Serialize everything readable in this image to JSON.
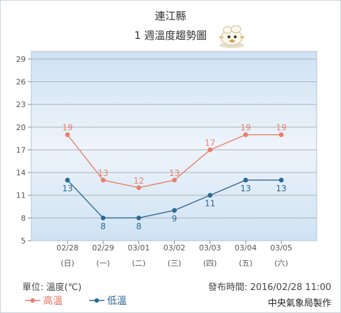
{
  "header": {
    "location": "連江縣",
    "subtitle": "1 週溫度趨勢圖"
  },
  "footer": {
    "unit": "單位: 溫度(℃)",
    "issued": "發布時間: 2016/02/28 11:00",
    "agency": "中央氣象局製作"
  },
  "legend": {
    "high": "高溫",
    "low": "低溫"
  },
  "colors": {
    "high": "#e87f6b",
    "low": "#2b6a94"
  },
  "chart_data": {
    "type": "line",
    "categories": [
      "02/28",
      "02/29",
      "03/01",
      "03/02",
      "03/03",
      "03/04",
      "03/05"
    ],
    "weekdays": [
      "(日)",
      "(一)",
      "(二)",
      "(三)",
      "(四)",
      "(五)",
      "(六)"
    ],
    "series": [
      {
        "name": "高溫",
        "values": [
          19,
          13,
          12,
          13,
          17,
          19,
          19
        ]
      },
      {
        "name": "低溫",
        "values": [
          13,
          8,
          8,
          9,
          11,
          13,
          13
        ]
      }
    ],
    "yticks": [
      5,
      8,
      11,
      14,
      17,
      20,
      23,
      26,
      29
    ],
    "ylim": [
      5,
      30
    ],
    "grid": true,
    "legend_position": "bottom-left"
  }
}
